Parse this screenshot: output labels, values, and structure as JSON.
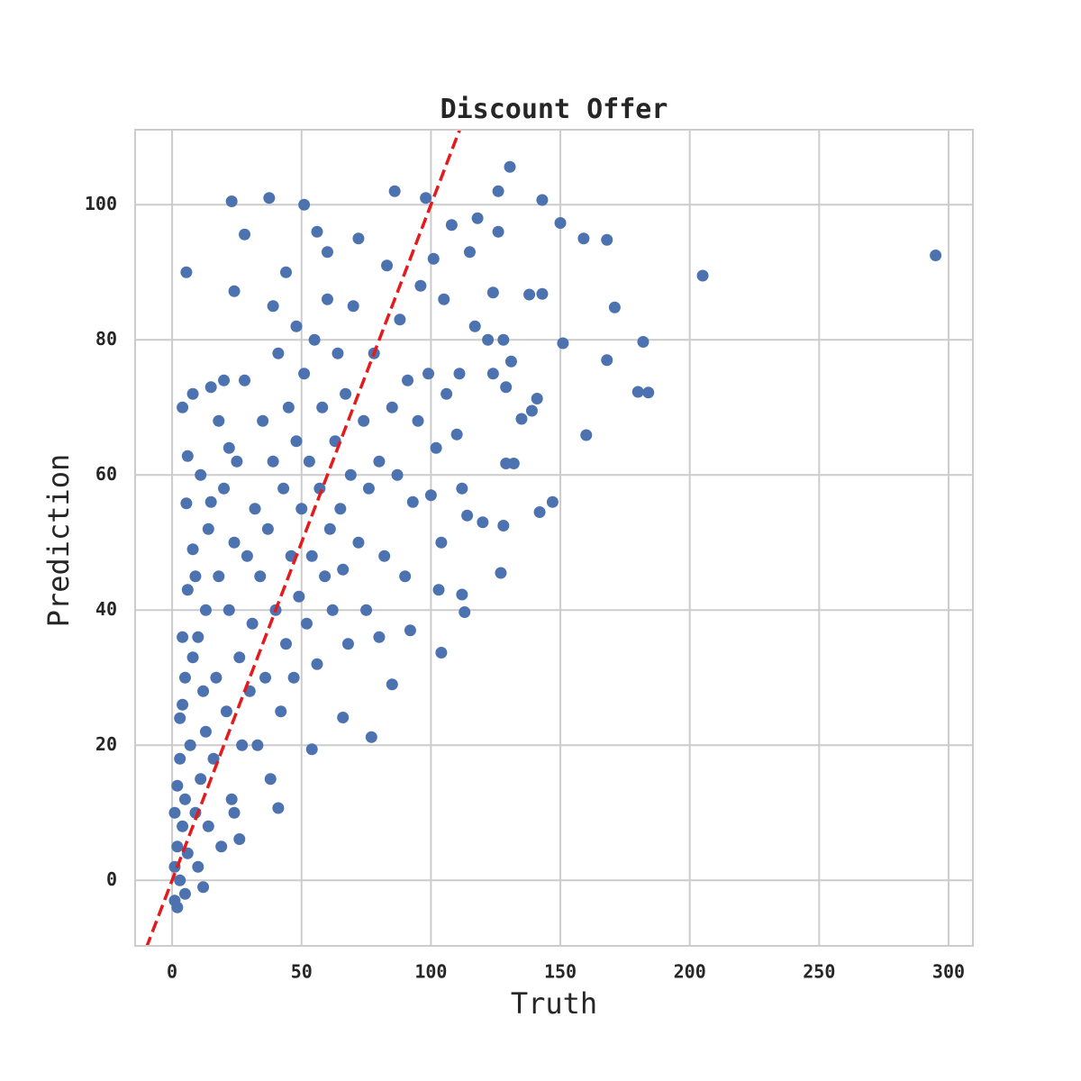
{
  "chart_data": {
    "type": "scatter",
    "title": "Discount Offer",
    "x_label": "Truth",
    "y_label": "Prediction",
    "xlim": [
      -14.3,
      309.4
    ],
    "ylim": [
      -9.7,
      111.1
    ],
    "xticks": [
      0,
      50,
      100,
      150,
      200,
      250,
      300
    ],
    "yticks": [
      0,
      20,
      40,
      60,
      80,
      100
    ],
    "grid": true,
    "series": [
      {
        "color": "#4c72b0",
        "x": [
          295,
          205,
          130.5,
          23,
          37.5,
          51,
          5.5,
          28,
          24,
          171,
          182,
          168,
          180,
          184,
          160,
          147,
          142,
          151,
          150,
          159,
          168,
          143,
          126,
          143,
          138,
          131,
          141,
          139,
          135,
          129,
          132,
          128,
          127,
          113,
          112,
          104,
          77,
          66,
          54,
          41,
          26,
          4,
          8,
          6,
          5.5,
          1,
          1,
          2,
          1,
          2,
          3,
          2,
          4,
          3,
          5,
          4,
          5,
          3,
          5,
          4,
          6,
          7,
          8,
          9,
          10,
          11,
          12,
          13,
          14,
          15,
          6,
          8,
          9,
          10,
          12,
          13,
          14,
          15,
          11,
          16,
          17,
          18,
          19,
          20,
          21,
          22,
          23,
          24,
          25,
          26,
          27,
          28,
          29,
          30,
          18,
          20,
          22,
          24,
          31,
          32,
          33,
          34,
          35,
          36,
          37,
          38,
          39,
          40,
          41,
          42,
          43,
          44,
          45,
          46,
          47,
          48,
          49,
          50,
          39,
          44,
          48,
          51,
          52,
          53,
          54,
          55,
          56,
          57,
          58,
          59,
          60,
          61,
          62,
          63,
          64,
          65,
          66,
          67,
          68,
          69,
          70,
          56,
          60,
          72,
          72,
          74,
          75,
          76,
          78,
          80,
          82,
          83,
          85,
          86,
          87,
          88,
          90,
          91,
          92,
          93,
          95,
          96,
          98,
          99,
          100,
          101,
          102,
          103,
          104,
          80,
          85,
          105,
          106,
          108,
          110,
          111,
          112,
          114,
          115,
          117,
          118,
          120,
          122,
          124,
          126,
          128,
          129,
          124
        ],
        "values": [
          92.5,
          89.5,
          105.6,
          100.5,
          101,
          100,
          90,
          95.6,
          87.2,
          84.8,
          79.7,
          77,
          72.3,
          72.2,
          65.9,
          56,
          54.5,
          79.5,
          97.3,
          95,
          94.8,
          100.7,
          102,
          86.8,
          86.7,
          76.8,
          71.3,
          69.5,
          68.3,
          61.7,
          61.7,
          52.5,
          45.5,
          39.7,
          42.3,
          33.7,
          21.2,
          24.1,
          19.4,
          10.7,
          6.1,
          70,
          72,
          62.8,
          55.8,
          -3,
          2,
          5,
          10,
          14,
          24,
          -4,
          8,
          18,
          30,
          36,
          -2,
          0,
          12,
          26,
          4,
          20,
          33,
          45,
          2,
          15,
          28,
          40,
          52,
          73,
          43,
          49,
          10,
          36,
          -1,
          22,
          8,
          56,
          60,
          18,
          30,
          45,
          5,
          58,
          25,
          40,
          12,
          50,
          62,
          33,
          20,
          74,
          48,
          28,
          68,
          74,
          64,
          10,
          38,
          55,
          20,
          45,
          68,
          30,
          52,
          15,
          62,
          40,
          78,
          25,
          58,
          35,
          70,
          48,
          30,
          65,
          42,
          55,
          85,
          90,
          82,
          75,
          38,
          62,
          48,
          80,
          32,
          58,
          70,
          45,
          86,
          52,
          40,
          65,
          78,
          55,
          46,
          72,
          35,
          60,
          85,
          96,
          93,
          95,
          50,
          68,
          40,
          58,
          78,
          62,
          48,
          91,
          70,
          102,
          60,
          83,
          45,
          74,
          37,
          56,
          68,
          88,
          101,
          75,
          57,
          92,
          64,
          43,
          50,
          36,
          29,
          86,
          72,
          97,
          66,
          75,
          58,
          54,
          93,
          82,
          98,
          53,
          80,
          75,
          96,
          80,
          73,
          87
        ]
      }
    ],
    "reference_line": {
      "x": [
        -10,
        112
      ],
      "y": [
        -10,
        112
      ],
      "color": "#e41a1c"
    }
  }
}
